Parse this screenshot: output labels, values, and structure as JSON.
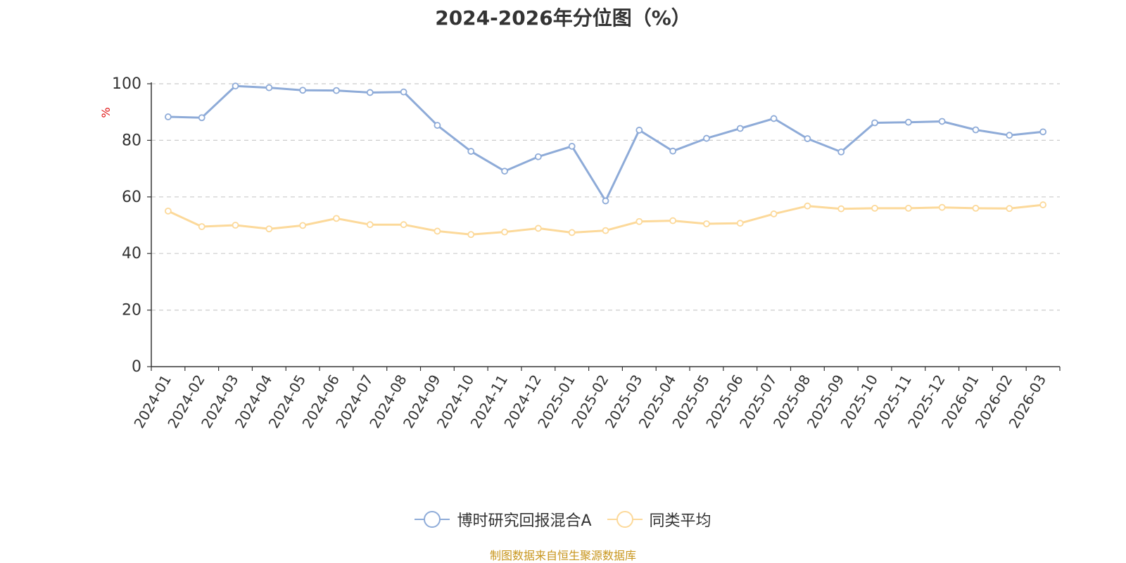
{
  "chart_data": {
    "type": "line",
    "title": "2024-2026年分位图（%）",
    "ylabel": "%",
    "ylim": [
      0,
      100
    ],
    "yticks": [
      0,
      20,
      40,
      60,
      80,
      100
    ],
    "grid": true,
    "legend_position": "bottom",
    "categories": [
      "2024-01",
      "2024-02",
      "2024-03",
      "2024-04",
      "2024-05",
      "2024-06",
      "2024-07",
      "2024-08",
      "2024-09",
      "2024-10",
      "2024-11",
      "2024-12",
      "2025-01",
      "2025-02",
      "2025-03",
      "2025-04",
      "2025-05",
      "2025-06",
      "2025-07",
      "2025-08",
      "2025-09",
      "2025-10",
      "2025-11",
      "2025-12",
      "2026-01",
      "2026-02",
      "2026-03"
    ],
    "series": [
      {
        "name": "博时研究回报混合A",
        "color": "#8eabd8",
        "values": [
          88.3,
          88.0,
          99.2,
          98.6,
          97.7,
          97.6,
          96.9,
          97.1,
          85.3,
          76.1,
          69.1,
          74.2,
          77.9,
          58.6,
          83.6,
          76.2,
          80.7,
          84.2,
          87.7,
          80.6,
          75.9,
          86.2,
          86.4,
          86.7,
          83.7,
          81.8,
          83.0
        ]
      },
      {
        "name": "同类平均",
        "color": "#fcd99a",
        "values": [
          55.0,
          49.5,
          50.0,
          48.7,
          49.9,
          52.4,
          50.2,
          50.2,
          47.9,
          46.7,
          47.6,
          48.9,
          47.4,
          48.1,
          51.3,
          51.6,
          50.5,
          50.7,
          54.0,
          56.8,
          55.8,
          56.0,
          56.0,
          56.3,
          56.0,
          55.9,
          57.2
        ]
      }
    ]
  },
  "source_note": "制图数据来自恒生聚源数据库"
}
